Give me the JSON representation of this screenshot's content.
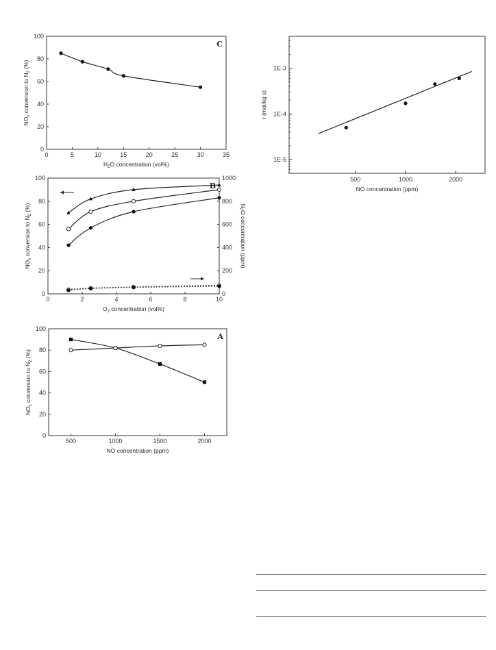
{
  "chart_data": [
    {
      "id": "C",
      "type": "line",
      "panel_label": "C",
      "xlabel_parts": [
        "H",
        "2",
        "O concentration (vol%)"
      ],
      "ylabel_parts": [
        "NO",
        "x",
        " conversion to N",
        "2",
        " (%)"
      ],
      "xlim": [
        0,
        35
      ],
      "xticks": [
        0,
        5,
        10,
        15,
        20,
        25,
        30,
        35
      ],
      "ylim": [
        0,
        100
      ],
      "yticks": [
        0,
        20,
        40,
        60,
        80,
        100
      ],
      "series": [
        {
          "marker": "filled-circle",
          "line": "solid",
          "x": [
            2.8,
            7,
            12,
            15,
            30
          ],
          "y": [
            85,
            77.5,
            71,
            65,
            55
          ]
        }
      ]
    },
    {
      "id": "B",
      "type": "line",
      "panel_label": "B",
      "xlabel_parts": [
        "O",
        "2",
        " concentration (vol%)"
      ],
      "ylabel_parts": [
        "NO",
        "x",
        " conversion to N",
        "2",
        " (%)"
      ],
      "y2label_parts": [
        "N",
        "2",
        "O concentration (ppm)"
      ],
      "xlim": [
        0,
        10
      ],
      "xticks": [
        0,
        2,
        4,
        6,
        8,
        10
      ],
      "ylim": [
        0,
        100
      ],
      "yticks": [
        0,
        20,
        40,
        60,
        80,
        100
      ],
      "y2lim": [
        0,
        1000
      ],
      "y2ticks": [
        0,
        200,
        400,
        600,
        800,
        1000
      ],
      "series": [
        {
          "marker": "filled-triangle",
          "line": "solid",
          "x": [
            1.2,
            2.5,
            5,
            10
          ],
          "y": [
            70,
            82,
            90,
            94
          ]
        },
        {
          "marker": "open-circle",
          "line": "solid",
          "x": [
            1.2,
            2.5,
            5,
            10
          ],
          "y": [
            56,
            71,
            80,
            90
          ]
        },
        {
          "marker": "filled-circle",
          "line": "solid",
          "x": [
            1.2,
            2.5,
            5,
            10
          ],
          "y": [
            42,
            57,
            71,
            83
          ]
        },
        {
          "marker": "filled-triangle",
          "line": "dashed",
          "axis": "y2",
          "x": [
            1.2,
            2.5,
            5,
            10
          ],
          "y": [
            40,
            50,
            60,
            75
          ]
        },
        {
          "marker": "open-circle",
          "line": "dashed",
          "axis": "y2",
          "x": [
            1.2,
            2.5,
            5,
            10
          ],
          "y": [
            35,
            48,
            58,
            70
          ]
        },
        {
          "marker": "filled-circle",
          "line": "dashed",
          "axis": "y2",
          "x": [
            1.2,
            2.5,
            5,
            10
          ],
          "y": [
            30,
            45,
            55,
            65
          ]
        }
      ]
    },
    {
      "id": "A",
      "type": "line",
      "panel_label": "A",
      "xlabel_parts": [
        "NO concentration (ppm)"
      ],
      "ylabel_parts": [
        "NO",
        "x",
        " conversion to N",
        "2",
        " (%)"
      ],
      "xlim": [
        250,
        2250
      ],
      "xticks": [
        500,
        1000,
        1500,
        2000
      ],
      "ylim": [
        0,
        100
      ],
      "yticks": [
        0,
        20,
        40,
        60,
        80,
        100
      ],
      "series": [
        {
          "marker": "filled-square",
          "line": "solid",
          "x": [
            500,
            1000,
            1500,
            2000
          ],
          "y": [
            90,
            82,
            67,
            50
          ]
        },
        {
          "marker": "open-circle",
          "line": "solid",
          "x": [
            500,
            1000,
            1500,
            2000
          ],
          "y": [
            80,
            82,
            84,
            85
          ]
        }
      ]
    },
    {
      "id": "D",
      "type": "scatter",
      "scale": "log-log",
      "xlabel_parts": [
        "NO concentration (ppm)"
      ],
      "ylabel_parts": [
        "r (mol/kg s)"
      ],
      "xlim": [
        200,
        3000
      ],
      "xticks": [
        500,
        1000,
        2000
      ],
      "xtick_labels": [
        "500",
        "1000",
        "2000"
      ],
      "ylim": [
        5e-06,
        0.005
      ],
      "yticks": [
        1e-05,
        0.0001,
        0.001
      ],
      "ytick_labels": [
        "1E-5",
        "1E-4",
        "1E-3"
      ],
      "series": [
        {
          "marker": "filled-circle",
          "x": [
            440,
            1000,
            1500,
            2100
          ],
          "y": [
            5e-05,
            0.00017,
            0.00045,
            0.0006
          ]
        }
      ],
      "fit": {
        "x": [
          300,
          2500
        ],
        "y": [
          3.7e-05,
          0.00085
        ]
      }
    }
  ]
}
